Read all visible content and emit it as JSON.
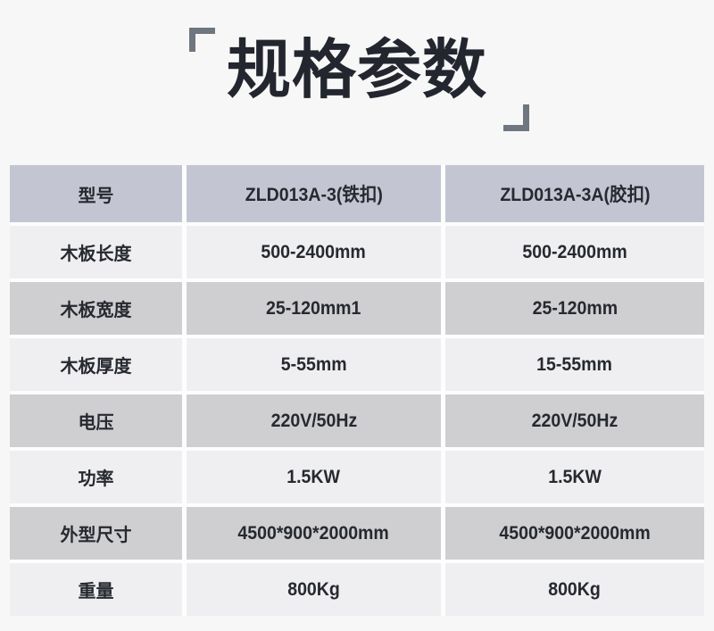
{
  "title": "规格参数",
  "table": {
    "header": [
      "型号",
      "ZLD013A-3(铁扣)",
      "ZLD013A-3A(胶扣)"
    ],
    "rows": [
      [
        "木板长度",
        "500-2400mm",
        "500-2400mm"
      ],
      [
        "木板宽度",
        "25-120mm1",
        "25-120mm"
      ],
      [
        "木板厚度",
        "5-55mm",
        "15-55mm"
      ],
      [
        "电压",
        "220V/50Hz",
        "220V/50Hz"
      ],
      [
        "功率",
        "1.5KW",
        "1.5KW"
      ],
      [
        "外型尺寸",
        "4500*900*2000mm",
        "4500*900*2000mm"
      ],
      [
        "重量",
        "800Kg",
        "800Kg"
      ]
    ]
  },
  "colors": {
    "page_background": "#f7f7f8",
    "header_row": "#c3c6d2",
    "stripe_gray": "#cfcfd2",
    "stripe_light": "#efeff1",
    "text": "#26292f",
    "bracket": "#70767f"
  }
}
